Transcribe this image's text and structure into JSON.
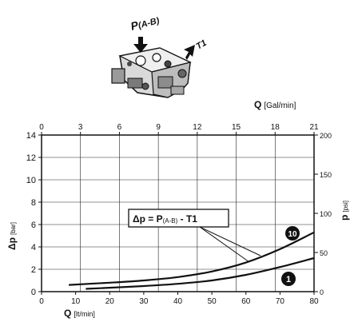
{
  "chart_data": {
    "type": "line",
    "top_axis": {
      "label_main": "Q",
      "label_unit": "[Gal/min]",
      "range": [
        0,
        21
      ],
      "ticks": [
        0,
        3,
        6,
        9,
        12,
        15,
        18,
        21
      ]
    },
    "bottom_axis": {
      "label_main": "Q",
      "label_unit": "[lt/min]",
      "range": [
        0,
        80
      ],
      "ticks": [
        0,
        10,
        20,
        30,
        40,
        50,
        60,
        70,
        80
      ]
    },
    "left_axis": {
      "label_main": "Δp",
      "label_unit": "[bar]",
      "range": [
        0,
        14
      ],
      "ticks": [
        0,
        2,
        4,
        6,
        8,
        10,
        12,
        14
      ]
    },
    "right_axis": {
      "label_main": "p",
      "label_unit": "[psi]",
      "range": [
        0,
        200
      ],
      "ticks": [
        0,
        50,
        100,
        150,
        200
      ]
    },
    "grid": true,
    "annotation": {
      "prefix": "Δp = P",
      "subscript": "(A-B)",
      "suffix": " - T1"
    },
    "series": [
      {
        "name": "10",
        "x": [
          8,
          20,
          30,
          40,
          50,
          60,
          70,
          80
        ],
        "y": [
          0.6,
          0.8,
          1.0,
          1.3,
          1.8,
          2.6,
          3.8,
          5.3
        ]
      },
      {
        "name": "1",
        "x": [
          13,
          20,
          30,
          40,
          50,
          60,
          70,
          80
        ],
        "y": [
          0.25,
          0.35,
          0.5,
          0.7,
          1.0,
          1.5,
          2.2,
          3.0
        ]
      }
    ]
  },
  "illustration": {
    "label_port_main": "P",
    "label_port_sub": "(A-B)",
    "label_outlet": "T1"
  }
}
